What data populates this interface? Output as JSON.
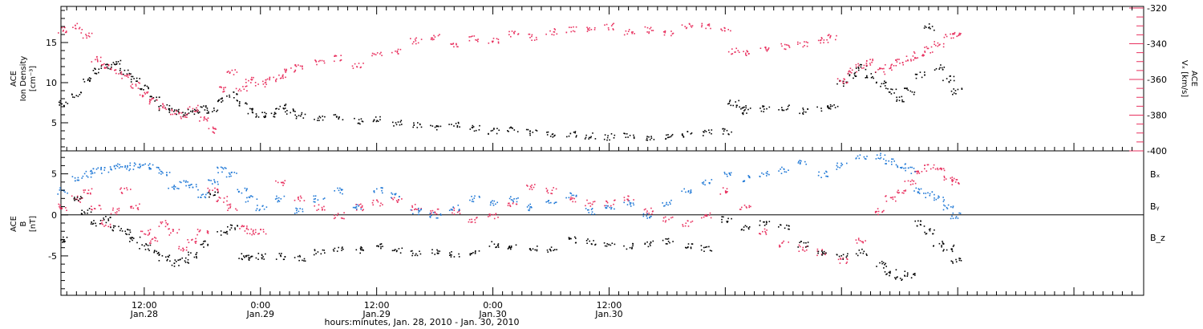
{
  "colors": {
    "black": "#000000",
    "pink": "#e8315f",
    "blue": "#1f78d6"
  },
  "chart_data": [
    {
      "type": "scatter",
      "panel": "top",
      "title": "",
      "ylabel_left": {
        "l1": "ACE",
        "l2": "Ion Density",
        "l3": "[cm⁻³]"
      },
      "ylabel_right": {
        "l1": "ACE",
        "l2": "Vₓ [km/s]"
      },
      "ylim_left": [
        1.5,
        19.5
      ],
      "yticks_left": [
        5,
        10,
        15
      ],
      "ylim_right": [
        -400,
        -320
      ],
      "yticks_right": [
        -400,
        -380,
        -360,
        -340,
        -320
      ],
      "xlim_hours": [
        3.4,
        115.2
      ],
      "series": [
        {
          "axis": "left",
          "color": "#000000",
          "x": [
            3.5,
            5,
            6,
            7,
            8,
            9,
            10,
            11,
            12,
            13,
            14,
            15,
            16,
            17,
            18,
            19,
            20,
            21,
            22,
            23,
            24,
            25,
            26,
            27,
            28,
            30,
            32,
            34,
            36,
            38,
            40,
            42,
            44,
            46,
            48,
            50,
            52,
            54,
            56,
            58,
            60,
            62,
            64,
            66,
            68,
            70,
            72,
            72.8,
            73.5,
            74,
            76,
            78,
            80,
            82,
            83,
            84,
            85,
            86,
            87,
            88,
            89,
            90,
            91,
            92,
            93,
            94,
            95,
            95.8
          ],
          "y": [
            7.5,
            8.5,
            10.5,
            11.5,
            12,
            12.5,
            11.5,
            10.5,
            9.5,
            8,
            7,
            6.5,
            6.2,
            6.5,
            6.8,
            6.5,
            8,
            8.5,
            7.5,
            6.5,
            6,
            6.2,
            7,
            6.5,
            6,
            5.5,
            5.8,
            5.3,
            5.5,
            5,
            4.8,
            4.5,
            4.8,
            4.4,
            4,
            4.2,
            3.9,
            3.7,
            3.6,
            3.4,
            3.3,
            3.5,
            3.2,
            3.4,
            3.6,
            3.8,
            4,
            7.5,
            7,
            6.5,
            6.8,
            7,
            6.5,
            6.8,
            7,
            10,
            11,
            12,
            11,
            10,
            9,
            8,
            9,
            11,
            17,
            12,
            10.5,
            9
          ]
        },
        {
          "axis": "right",
          "color": "#e8315f",
          "x": [
            3.5,
            5,
            6,
            7,
            8,
            9,
            10,
            11,
            12,
            13,
            14,
            15,
            16,
            17,
            18,
            19,
            20,
            21,
            22,
            23,
            24,
            25,
            26,
            27,
            28,
            30,
            32,
            34,
            36,
            38,
            40,
            42,
            44,
            46,
            48,
            50,
            52,
            54,
            56,
            58,
            60,
            62,
            64,
            66,
            68,
            70,
            72,
            72.8,
            74,
            76,
            78,
            80,
            82,
            83,
            84,
            85,
            86,
            87,
            88,
            89,
            90,
            91,
            92,
            93,
            94,
            95,
            95.8
          ],
          "y": [
            -332,
            -330,
            -335,
            -348,
            -352,
            -355,
            -358,
            -363,
            -368,
            -372,
            -375,
            -378,
            -380,
            -376,
            -382,
            -388,
            -365,
            -356,
            -365,
            -360,
            -362,
            -360,
            -358,
            -355,
            -352,
            -350,
            -348,
            -352,
            -346,
            -344,
            -338,
            -336,
            -340,
            -337,
            -338,
            -334,
            -336,
            -333,
            -332,
            -332,
            -330,
            -333,
            -332,
            -334,
            -330,
            -330,
            -331,
            -344,
            -345,
            -342,
            -341,
            -340,
            -338,
            -336,
            -360,
            -355,
            -352,
            -350,
            -355,
            -353,
            -350,
            -348,
            -346,
            -343,
            -340,
            -336,
            -334
          ]
        }
      ]
    },
    {
      "type": "scatter",
      "panel": "bottom",
      "title": "",
      "ylabel": {
        "l1": "ACE",
        "l2": "B",
        "l3": "[nT]"
      },
      "ylim": [
        -9.8,
        7.8
      ],
      "yticks": [
        -5,
        0,
        5
      ],
      "xlim_hours": [
        3.4,
        115.2
      ],
      "legend": [
        {
          "name": "Bₓ",
          "color": "#000000"
        },
        {
          "name": "Bᵧ",
          "color": "#1f78d6"
        },
        {
          "name": "B_z",
          "color": "#e8315f"
        }
      ],
      "series": [
        {
          "name": "Bx",
          "color": "#000000",
          "x": [
            3.5,
            5,
            6,
            7,
            8,
            9,
            10,
            11,
            12,
            13,
            14,
            15,
            16,
            17,
            18,
            19,
            20,
            21,
            22,
            23,
            24,
            26,
            28,
            30,
            32,
            34,
            36,
            38,
            40,
            42,
            44,
            46,
            48,
            50,
            52,
            54,
            56,
            58,
            60,
            62,
            64,
            66,
            68,
            70,
            72,
            74,
            76,
            78,
            80,
            82,
            84,
            86,
            88,
            89,
            90,
            91,
            92,
            93,
            94,
            95,
            95.8
          ],
          "y": [
            -3,
            2,
            0.5,
            -1,
            -0.5,
            -1.5,
            -2,
            -3,
            -3.8,
            -4.5,
            -5.2,
            -5.8,
            -5.5,
            -4.8,
            -3.5,
            2.5,
            -2,
            -1.5,
            -5,
            -5.2,
            -5,
            -5,
            -5.2,
            -4.5,
            -4,
            -4.2,
            -3.8,
            -4.2,
            -4.5,
            -4.5,
            -4.8,
            -4.5,
            -3.5,
            -3.8,
            -4,
            -4.2,
            -3,
            -3.2,
            -3.5,
            -3.8,
            -3.5,
            -3.2,
            -3.8,
            -4,
            -0.5,
            -1.5,
            -1,
            -1.5,
            -3.5,
            -4.5,
            -5,
            -4.5,
            -6,
            -7,
            -7.5,
            -7.2,
            -1,
            -2,
            -3.5,
            -4,
            -5.5
          ]
        },
        {
          "name": "By",
          "color": "#1f78d6",
          "x": [
            3.5,
            5,
            6,
            7,
            8,
            9,
            10,
            11,
            12,
            13,
            14,
            15,
            16,
            17,
            18,
            19,
            20,
            21,
            22,
            23,
            24,
            26,
            28,
            30,
            32,
            34,
            36,
            38,
            40,
            42,
            44,
            46,
            48,
            50,
            52,
            54,
            56,
            58,
            60,
            62,
            64,
            66,
            68,
            70,
            72,
            74,
            76,
            78,
            80,
            82,
            84,
            86,
            88,
            89,
            90,
            91,
            92,
            93,
            94,
            95,
            95.8
          ],
          "y": [
            3,
            4.5,
            5,
            5.5,
            5.5,
            6,
            5.8,
            6,
            6.2,
            5.8,
            5,
            3.5,
            4,
            3.5,
            2.5,
            4,
            5.5,
            5,
            3,
            2,
            1,
            2,
            0.5,
            2,
            3,
            1,
            3,
            2.5,
            0.5,
            0,
            1,
            2,
            1.5,
            2,
            1,
            1.5,
            2.5,
            0.5,
            1,
            1.5,
            0,
            1.5,
            3,
            4,
            5,
            4.5,
            5,
            5.5,
            6.5,
            5,
            6,
            7,
            7.2,
            6.5,
            6,
            5.5,
            3,
            2.5,
            2,
            1,
            0
          ]
        },
        {
          "name": "Bz",
          "color": "#e8315f",
          "x": [
            3.5,
            5,
            6,
            7,
            8,
            9,
            10,
            11,
            12,
            13,
            14,
            15,
            16,
            17,
            18,
            19,
            20,
            21,
            22,
            23,
            24,
            26,
            28,
            30,
            32,
            34,
            36,
            38,
            40,
            42,
            44,
            46,
            48,
            50,
            52,
            54,
            56,
            58,
            60,
            62,
            64,
            66,
            68,
            70,
            72,
            74,
            76,
            78,
            80,
            82,
            84,
            86,
            88,
            89,
            90,
            91,
            92,
            93,
            94,
            95,
            95.8
          ],
          "y": [
            1,
            2,
            3,
            1,
            -1,
            0.5,
            3,
            1,
            -2,
            -3,
            -1,
            -2,
            -4,
            -3,
            -2,
            3,
            2,
            1,
            -1.5,
            -2,
            -2,
            4,
            2,
            1,
            0,
            1,
            1.5,
            2,
            1,
            0.5,
            0.5,
            -0.5,
            0,
            1.5,
            3.5,
            3,
            2,
            1.5,
            1.5,
            2,
            0.5,
            -0.5,
            -1,
            0,
            3,
            1,
            -2,
            -3.5,
            -4,
            -4.5,
            -5.5,
            -3,
            0.5,
            2,
            3,
            4,
            5.5,
            5.8,
            5.5,
            4.5,
            4
          ]
        }
      ]
    }
  ],
  "x_axis": {
    "ticks": [
      {
        "hours": 12,
        "l1": "12:00",
        "l2": "Jan.28"
      },
      {
        "hours": 24,
        "l1": "0:00",
        "l2": "Jan.29"
      },
      {
        "hours": 36,
        "l1": "12:00",
        "l2": "Jan.29"
      },
      {
        "hours": 48,
        "l1": "0:00",
        "l2": "Jan.30"
      },
      {
        "hours": 60,
        "l1": "12:00",
        "l2": "Jan.30"
      }
    ],
    "label": "hours:minutes, Jan. 28, 2010 - Jan. 30, 2010"
  }
}
